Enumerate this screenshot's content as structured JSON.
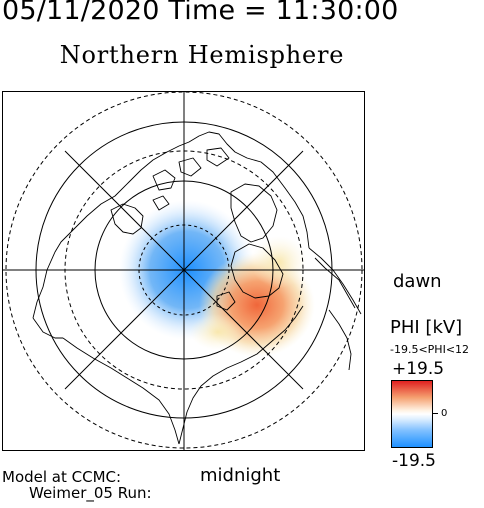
{
  "header": {
    "title": "05/11/2020 Time = 11:30:00"
  },
  "map": {
    "title": "Northern Hemisphere",
    "label_midnight": "midnight",
    "label_dawn": "dawn",
    "projection": "polar-stereographic",
    "grid": true
  },
  "legend": {
    "title": "PHI [kV]",
    "range_text": "-19.5<PHI<12",
    "max_label": "+19.5",
    "zero_label": "0",
    "min_label": "-19.5",
    "colors": {
      "min": "#1e90ff",
      "mid": "#ffffff",
      "max": "#e02020"
    }
  },
  "footer": {
    "line1": "Model at CCMC:",
    "line2": "Weimer_05 Run:"
  }
}
